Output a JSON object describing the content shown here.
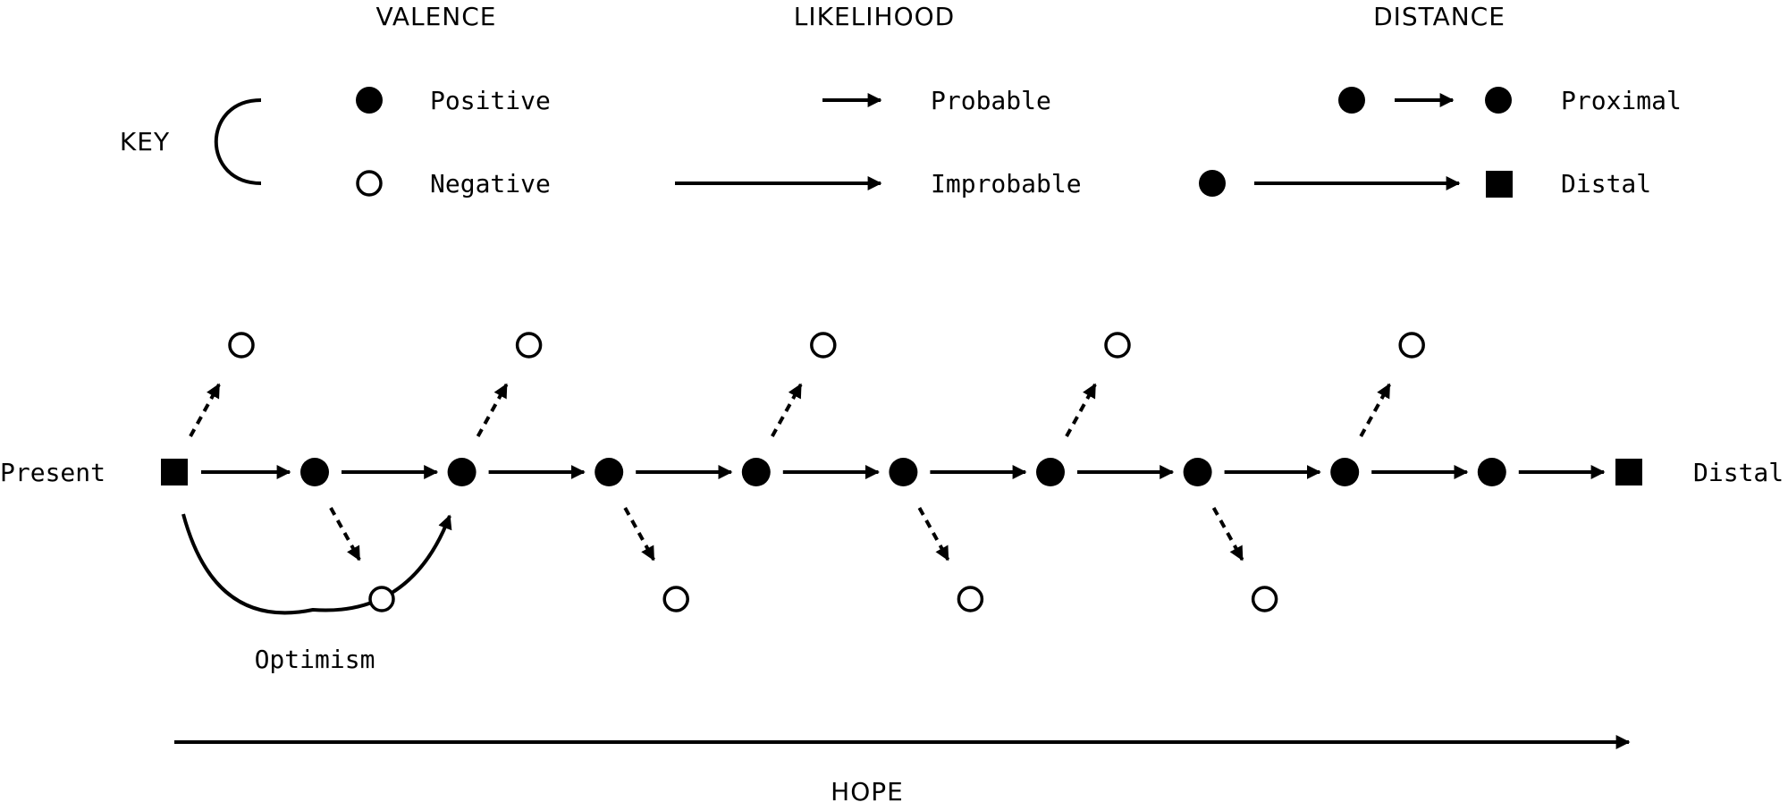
{
  "colors": {
    "ink": "#000000",
    "background": "#ffffff"
  },
  "key": {
    "label": "KEY",
    "valence": {
      "header": "VALENCE",
      "positive": "Positive",
      "negative": "Negative"
    },
    "likelihood": {
      "header": "LIKELIHOOD",
      "probable": "Probable",
      "improbable": "Improbable"
    },
    "distance": {
      "header": "DISTANCE",
      "proximal": "Proximal",
      "distal": "Distal"
    }
  },
  "timeline": {
    "start_label": "Present",
    "end_label": "Distal",
    "positive_nodes": 9,
    "negative_outcomes": 9,
    "optimism_label": "Optimism",
    "hope_label": "HOPE"
  }
}
